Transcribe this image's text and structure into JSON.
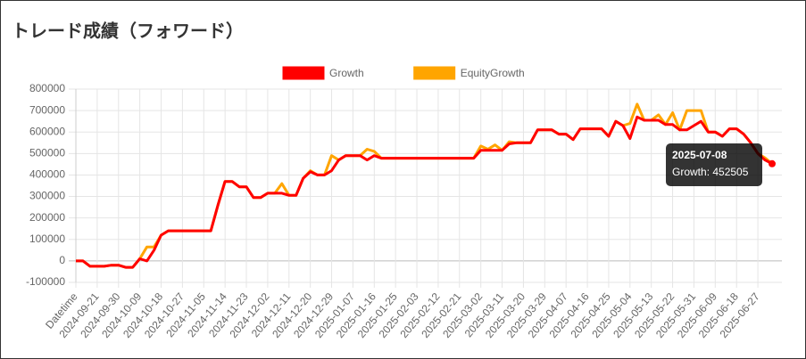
{
  "chart_data": {
    "type": "line",
    "title": "トレード成績（フォワード）",
    "categories": [
      "Datetime",
      null,
      null,
      "2024-09-21",
      null,
      null,
      "2024-09-30",
      null,
      null,
      "2024-10-09",
      null,
      null,
      "2024-10-18",
      null,
      null,
      "2024-10-27",
      null,
      null,
      "2024-11-05",
      null,
      null,
      "2024-11-14",
      null,
      null,
      "2024-11-23",
      null,
      null,
      "2024-12-02",
      null,
      null,
      "2024-12-11",
      null,
      null,
      "2024-12-20",
      null,
      null,
      "2024-12-29",
      null,
      null,
      "2025-01-07",
      null,
      null,
      "2025-01-16",
      null,
      null,
      "2025-01-25",
      null,
      null,
      "2025-02-03",
      null,
      null,
      "2025-02-12",
      null,
      null,
      "2025-02-21",
      null,
      null,
      "2025-03-02",
      null,
      null,
      "2025-03-11",
      null,
      null,
      "2025-03-20",
      null,
      null,
      "2025-03-29",
      null,
      null,
      "2025-04-07",
      null,
      null,
      "2025-04-16",
      null,
      null,
      "2025-04-25",
      null,
      null,
      "2025-05-04",
      null,
      null,
      "2025-05-13",
      null,
      null,
      "2025-05-22",
      null,
      null,
      "2025-05-31",
      null,
      null,
      "2025-06-09",
      null,
      null,
      "2025-06-18",
      null,
      null,
      "2025-06-27",
      null,
      "2025-07-08"
    ],
    "series": [
      {
        "name": "Growth",
        "color": "#ff0000",
        "values": [
          0,
          0,
          -25000,
          -25000,
          -25000,
          -20000,
          -20000,
          -30000,
          -30000,
          10000,
          0,
          50000,
          120000,
          140000,
          140000,
          140000,
          140000,
          140000,
          140000,
          140000,
          260000,
          370000,
          370000,
          345000,
          345000,
          295000,
          295000,
          315000,
          315000,
          315000,
          305000,
          305000,
          385000,
          415000,
          400000,
          400000,
          420000,
          470000,
          490000,
          490000,
          490000,
          470000,
          490000,
          478000,
          478000,
          478000,
          478000,
          478000,
          478000,
          478000,
          478000,
          478000,
          478000,
          478000,
          478000,
          478000,
          478000,
          515000,
          515000,
          515000,
          515000,
          545000,
          550000,
          550000,
          550000,
          610000,
          610000,
          610000,
          590000,
          590000,
          565000,
          615000,
          615000,
          615000,
          615000,
          580000,
          650000,
          630000,
          570000,
          670000,
          655000,
          655000,
          655000,
          635000,
          635000,
          610000,
          610000,
          630000,
          650000,
          600000,
          600000,
          580000,
          615000,
          615000,
          590000,
          550000,
          500000,
          470000,
          452505
        ]
      },
      {
        "name": "EquityGrowth",
        "color": "#ffa500",
        "values": [
          0,
          0,
          -25000,
          -25000,
          -25000,
          -20000,
          -20000,
          -30000,
          -30000,
          10000,
          65000,
          65000,
          120000,
          140000,
          140000,
          140000,
          140000,
          140000,
          140000,
          140000,
          260000,
          370000,
          370000,
          345000,
          345000,
          295000,
          295000,
          315000,
          315000,
          360000,
          305000,
          305000,
          385000,
          420000,
          400000,
          400000,
          490000,
          470000,
          490000,
          490000,
          490000,
          520000,
          510000,
          478000,
          478000,
          478000,
          478000,
          478000,
          478000,
          478000,
          478000,
          478000,
          478000,
          478000,
          478000,
          478000,
          478000,
          535000,
          520000,
          540000,
          515000,
          555000,
          550000,
          550000,
          550000,
          610000,
          610000,
          610000,
          590000,
          590000,
          565000,
          615000,
          615000,
          615000,
          615000,
          580000,
          650000,
          630000,
          640000,
          730000,
          655000,
          655000,
          680000,
          635000,
          690000,
          610000,
          700000,
          700000,
          700000,
          600000,
          600000,
          580000,
          615000,
          615000,
          590000,
          550000,
          500000,
          480000,
          452505
        ]
      }
    ],
    "ylim": [
      -100000,
      800000
    ],
    "yticks": [
      -100000,
      0,
      100000,
      200000,
      300000,
      400000,
      500000,
      600000,
      700000,
      800000
    ],
    "grid": true,
    "legend": "top"
  }
}
